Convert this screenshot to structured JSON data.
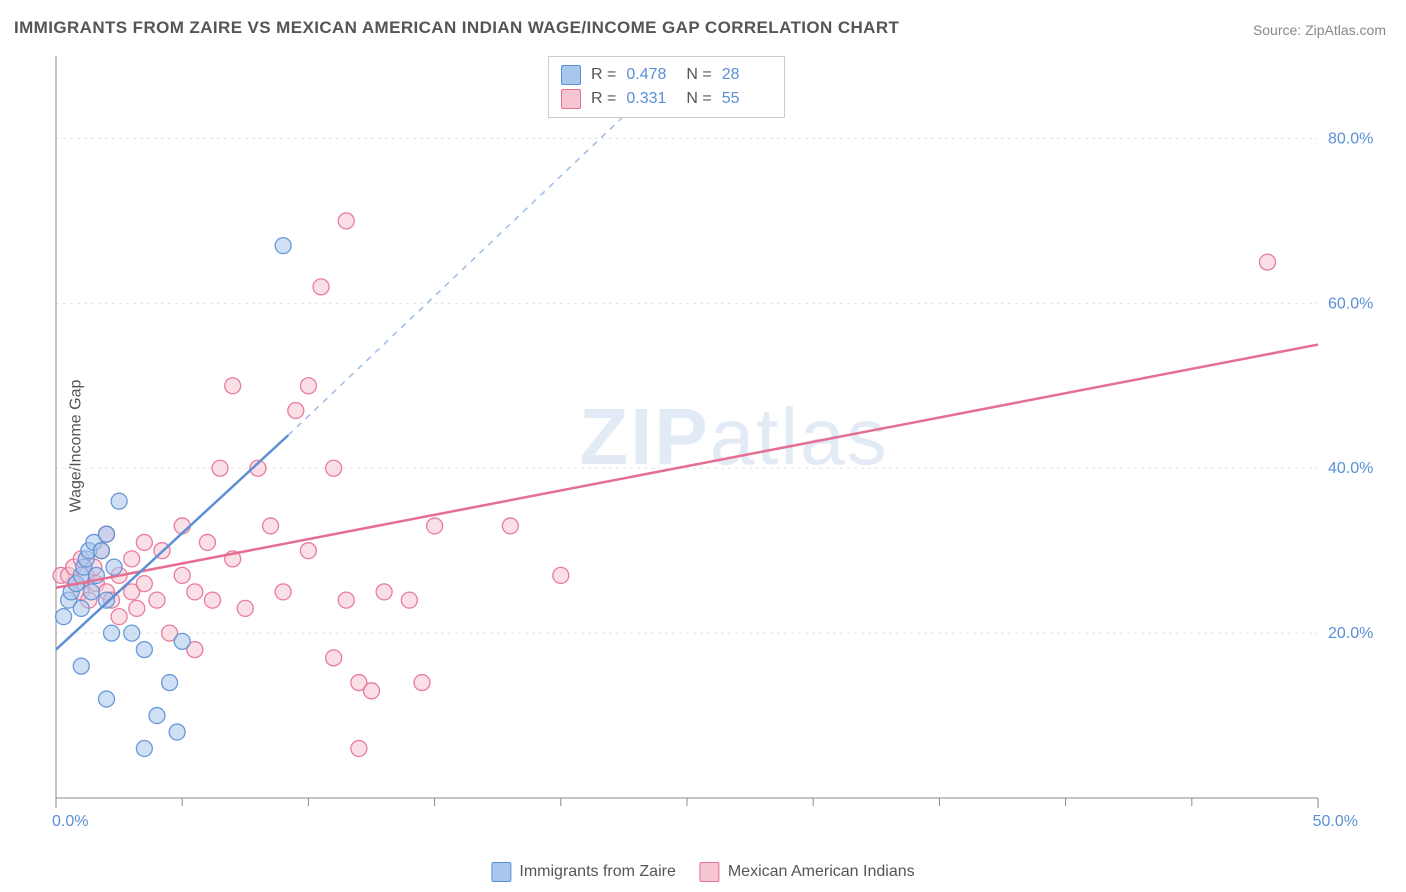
{
  "title": "IMMIGRANTS FROM ZAIRE VS MEXICAN AMERICAN INDIAN WAGE/INCOME GAP CORRELATION CHART",
  "source": "Source: ZipAtlas.com",
  "ylabel": "Wage/Income Gap",
  "watermark_bold": "ZIP",
  "watermark_light": "atlas",
  "chart": {
    "type": "scatter",
    "background_color": "#ffffff",
    "grid_color": "#e3e3e3",
    "axis_color": "#888888",
    "tick_label_color": "#5b8fd6",
    "tick_fontsize": 16,
    "xlim": [
      0,
      50
    ],
    "ylim": [
      0,
      90
    ],
    "x_ticks_major": [
      0,
      50
    ],
    "x_ticks_minor": [
      5,
      10,
      15,
      20,
      25,
      30,
      35,
      40,
      45
    ],
    "y_ticks": [
      20,
      40,
      60,
      80
    ],
    "x_tick_labels": {
      "0": "0.0%",
      "50": "50.0%"
    },
    "y_tick_labels": {
      "20": "20.0%",
      "40": "40.0%",
      "60": "60.0%",
      "80": "80.0%"
    },
    "marker_radius": 8,
    "marker_opacity": 0.55,
    "marker_stroke_opacity": 0.9,
    "line_width": 2.5,
    "dash_pattern": "6 6"
  },
  "series": [
    {
      "key": "zaire",
      "label": "Immigrants from Zaire",
      "fill_color": "#a7c7ec",
      "stroke_color": "#5b8fd6",
      "r": "0.478",
      "n": "28",
      "trend_solid": {
        "x1": 0,
        "y1": 18,
        "x2": 9.2,
        "y2": 44
      },
      "trend_dash": {
        "x1": 9.2,
        "y1": 44,
        "x2": 25,
        "y2": 90
      },
      "points": [
        [
          0.3,
          22
        ],
        [
          0.5,
          24
        ],
        [
          0.6,
          25
        ],
        [
          0.8,
          26
        ],
        [
          1.0,
          23
        ],
        [
          1.0,
          27
        ],
        [
          1.1,
          28
        ],
        [
          1.2,
          29
        ],
        [
          1.3,
          30
        ],
        [
          1.4,
          25
        ],
        [
          1.5,
          31
        ],
        [
          1.6,
          27
        ],
        [
          1.8,
          30
        ],
        [
          2.0,
          32
        ],
        [
          2.0,
          24
        ],
        [
          2.2,
          20
        ],
        [
          2.3,
          28
        ],
        [
          2.5,
          36
        ],
        [
          3.0,
          20
        ],
        [
          3.5,
          18
        ],
        [
          4.0,
          10
        ],
        [
          4.5,
          14
        ],
        [
          4.8,
          8
        ],
        [
          5.0,
          19
        ],
        [
          3.5,
          6
        ],
        [
          2.0,
          12
        ],
        [
          1.0,
          16
        ],
        [
          9.0,
          67
        ]
      ]
    },
    {
      "key": "mexican",
      "label": "Mexican American Indians",
      "fill_color": "#f7c4d2",
      "stroke_color": "#e56f92",
      "r": "0.331",
      "n": "55",
      "trend_solid": {
        "x1": 0,
        "y1": 25.5,
        "x2": 50,
        "y2": 55
      },
      "points": [
        [
          0.2,
          27
        ],
        [
          0.5,
          27
        ],
        [
          0.7,
          28
        ],
        [
          0.8,
          26
        ],
        [
          1.0,
          25
        ],
        [
          1.0,
          29
        ],
        [
          1.2,
          27
        ],
        [
          1.3,
          24
        ],
        [
          1.5,
          28
        ],
        [
          1.6,
          26
        ],
        [
          1.8,
          30
        ],
        [
          2.0,
          25
        ],
        [
          2.0,
          32
        ],
        [
          2.2,
          24
        ],
        [
          2.5,
          27
        ],
        [
          2.5,
          22
        ],
        [
          3.0,
          25
        ],
        [
          3.0,
          29
        ],
        [
          3.2,
          23
        ],
        [
          3.5,
          31
        ],
        [
          3.5,
          26
        ],
        [
          4.0,
          24
        ],
        [
          4.2,
          30
        ],
        [
          4.5,
          20
        ],
        [
          5.0,
          27
        ],
        [
          5.0,
          33
        ],
        [
          5.5,
          25
        ],
        [
          5.5,
          18
        ],
        [
          6.0,
          31
        ],
        [
          6.2,
          24
        ],
        [
          6.5,
          40
        ],
        [
          7.0,
          29
        ],
        [
          7.0,
          50
        ],
        [
          7.5,
          23
        ],
        [
          8.0,
          40
        ],
        [
          8.5,
          33
        ],
        [
          9.0,
          25
        ],
        [
          9.5,
          47
        ],
        [
          10.0,
          50
        ],
        [
          10.0,
          30
        ],
        [
          10.5,
          62
        ],
        [
          11.0,
          40
        ],
        [
          11.5,
          24
        ],
        [
          11.5,
          70
        ],
        [
          12.0,
          14
        ],
        [
          12.5,
          13
        ],
        [
          13.0,
          25
        ],
        [
          14.0,
          24
        ],
        [
          14.5,
          14
        ],
        [
          15.0,
          33
        ],
        [
          18.0,
          33
        ],
        [
          20.0,
          27
        ],
        [
          12.0,
          6
        ],
        [
          11.0,
          17
        ],
        [
          48.0,
          65
        ]
      ]
    }
  ],
  "legend_bottom": [
    {
      "key": "zaire",
      "label": "Immigrants from Zaire"
    },
    {
      "key": "mexican",
      "label": "Mexican American Indians"
    }
  ]
}
